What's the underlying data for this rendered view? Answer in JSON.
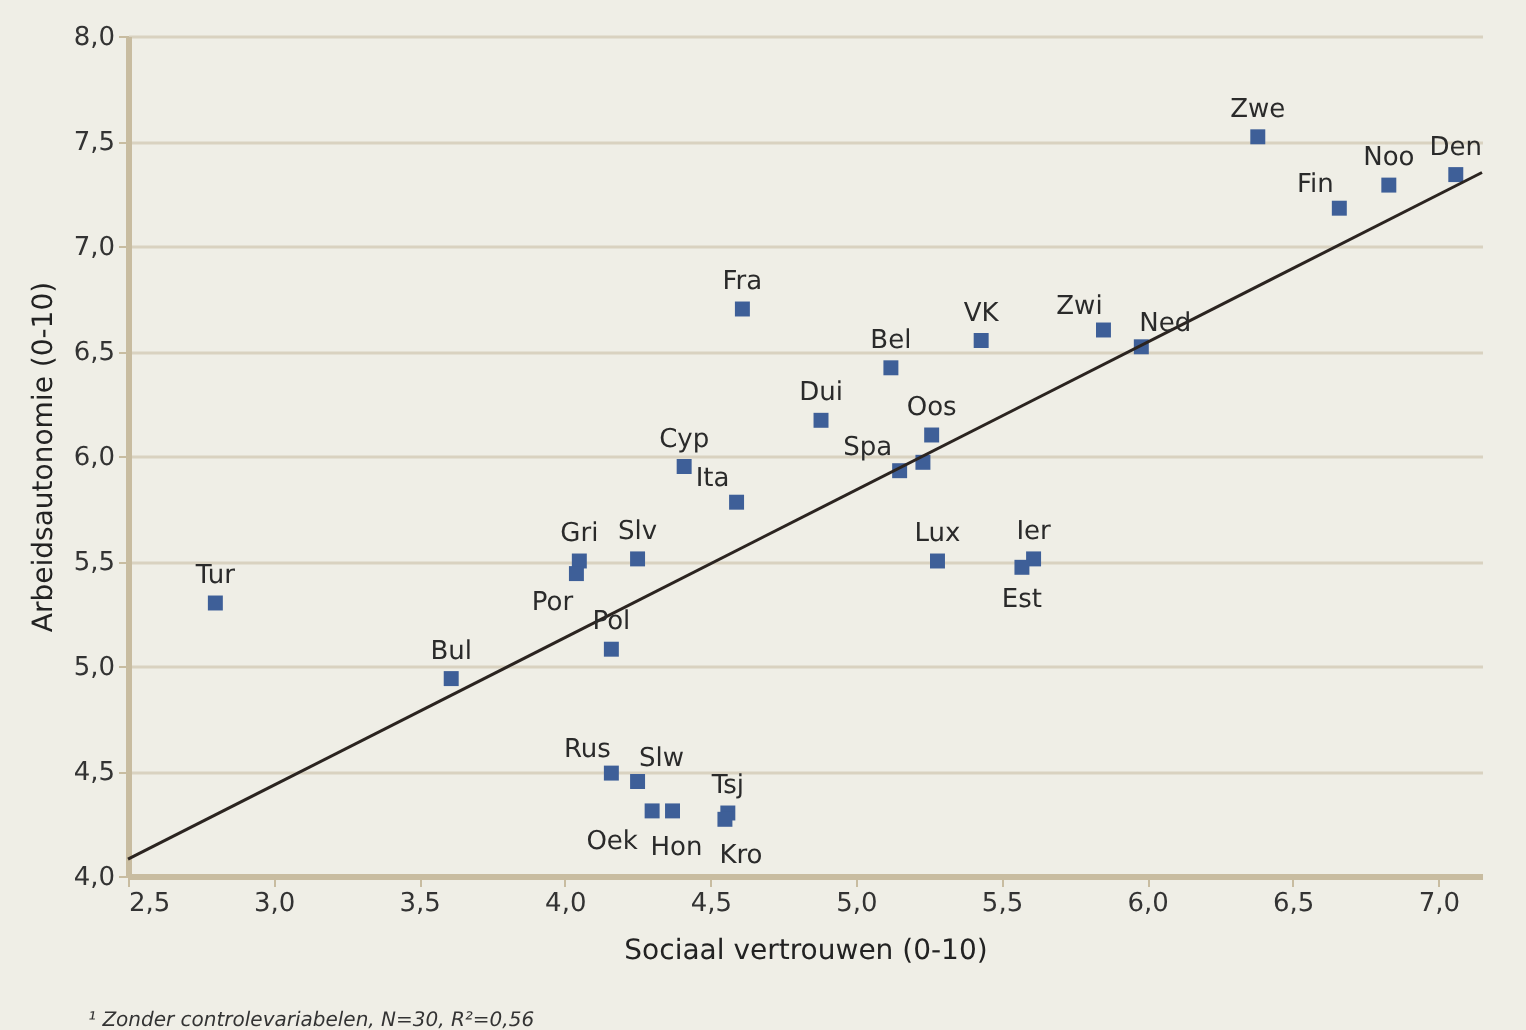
{
  "chart_data": {
    "type": "scatter",
    "xlabel": "Sociaal vertrouwen (0-10)",
    "ylabel": "Arbeidsautonomie (0-10)",
    "xlim": [
      2.5,
      7.15
    ],
    "ylim": [
      4.0,
      8.0
    ],
    "xticks": [
      {
        "value": 2.5,
        "label": "2,5"
      },
      {
        "value": 3.0,
        "label": "3,0"
      },
      {
        "value": 3.5,
        "label": "3,5"
      },
      {
        "value": 4.0,
        "label": "4,0"
      },
      {
        "value": 4.5,
        "label": "4,5"
      },
      {
        "value": 5.0,
        "label": "5,0"
      },
      {
        "value": 5.5,
        "label": "5,5"
      },
      {
        "value": 6.0,
        "label": "6,0"
      },
      {
        "value": 6.5,
        "label": "6,5"
      },
      {
        "value": 7.0,
        "label": "7,0"
      }
    ],
    "yticks": [
      {
        "value": 4.0,
        "label": "4,0"
      },
      {
        "value": 4.5,
        "label": "4,5"
      },
      {
        "value": 5.0,
        "label": "5,0"
      },
      {
        "value": 5.5,
        "label": "5,5"
      },
      {
        "value": 6.0,
        "label": "6,0"
      },
      {
        "value": 6.5,
        "label": "6,5"
      },
      {
        "value": 7.0,
        "label": "7,0"
      },
      {
        "value": 7.5,
        "label": "7,5"
      },
      {
        "value": 8.0,
        "label": "8,0"
      }
    ],
    "grid": "y",
    "marker": "square",
    "series": [
      {
        "color": "#3e5f98",
        "x": [
          6.38,
          7.06,
          6.83,
          6.66,
          5.85,
          5.98,
          5.43,
          4.61,
          5.12,
          4.88,
          5.26,
          5.15,
          5.23,
          4.41,
          4.59,
          4.05,
          4.04,
          4.25,
          2.8,
          4.16,
          3.61,
          5.28,
          5.61,
          5.57,
          4.16,
          4.25,
          4.3,
          4.37,
          4.56,
          4.55
        ],
        "values": [
          7.52,
          7.34,
          7.29,
          7.18,
          6.6,
          6.52,
          6.55,
          6.7,
          6.42,
          6.17,
          6.1,
          5.93,
          5.97,
          5.95,
          5.78,
          5.5,
          5.44,
          5.51,
          5.3,
          5.08,
          4.94,
          5.5,
          5.51,
          5.47,
          4.49,
          4.45,
          4.31,
          4.31,
          4.3,
          4.27
        ]
      },
      {
        "type": "line",
        "marker": "none",
        "color": "#2b2420",
        "x": [
          2.5,
          7.15
        ],
        "values": [
          4.08,
          7.35
        ]
      }
    ],
    "annotations": [
      {
        "text": "Zwe",
        "x": 6.38,
        "y": 7.52
      },
      {
        "text": "Den",
        "x": 7.06,
        "y": 7.34
      },
      {
        "text": "Noo",
        "x": 6.83,
        "y": 7.29
      },
      {
        "text": "Fin",
        "x": 6.66,
        "y": 7.18
      },
      {
        "text": "Zwi",
        "x": 5.85,
        "y": 6.6
      },
      {
        "text": "Ned",
        "x": 5.98,
        "y": 6.52
      },
      {
        "text": "VK",
        "x": 5.43,
        "y": 6.55
      },
      {
        "text": "Fra",
        "x": 4.61,
        "y": 6.7
      },
      {
        "text": "Bel",
        "x": 5.12,
        "y": 6.42
      },
      {
        "text": "Dui",
        "x": 4.88,
        "y": 6.17
      },
      {
        "text": "Oos",
        "x": 5.26,
        "y": 6.1
      },
      {
        "text": "Spa",
        "x": 5.15,
        "y": 5.93
      },
      {
        "text": "Cyp",
        "x": 4.41,
        "y": 5.95
      },
      {
        "text": "Ita",
        "x": 4.59,
        "y": 5.78
      },
      {
        "text": "Gri",
        "x": 4.05,
        "y": 5.5
      },
      {
        "text": "Por",
        "x": 4.04,
        "y": 5.44
      },
      {
        "text": "Slv",
        "x": 4.25,
        "y": 5.51
      },
      {
        "text": "Tur",
        "x": 2.8,
        "y": 5.3
      },
      {
        "text": "Pol",
        "x": 4.16,
        "y": 5.08
      },
      {
        "text": "Bul",
        "x": 3.61,
        "y": 4.94
      },
      {
        "text": "Lux",
        "x": 5.28,
        "y": 5.5
      },
      {
        "text": "Ier",
        "x": 5.61,
        "y": 5.51
      },
      {
        "text": "Est",
        "x": 5.57,
        "y": 5.47
      },
      {
        "text": "Rus",
        "x": 4.16,
        "y": 4.49
      },
      {
        "text": "Slw",
        "x": 4.25,
        "y": 4.45
      },
      {
        "text": "Oek",
        "x": 4.3,
        "y": 4.31
      },
      {
        "text": "Hon",
        "x": 4.37,
        "y": 4.31
      },
      {
        "text": "Tsj",
        "x": 4.56,
        "y": 4.3
      },
      {
        "text": "Kro",
        "x": 4.55,
        "y": 4.27
      },
      "¹ Zonder controlevariabelen, N=30, R²=0,56"
    ]
  }
}
